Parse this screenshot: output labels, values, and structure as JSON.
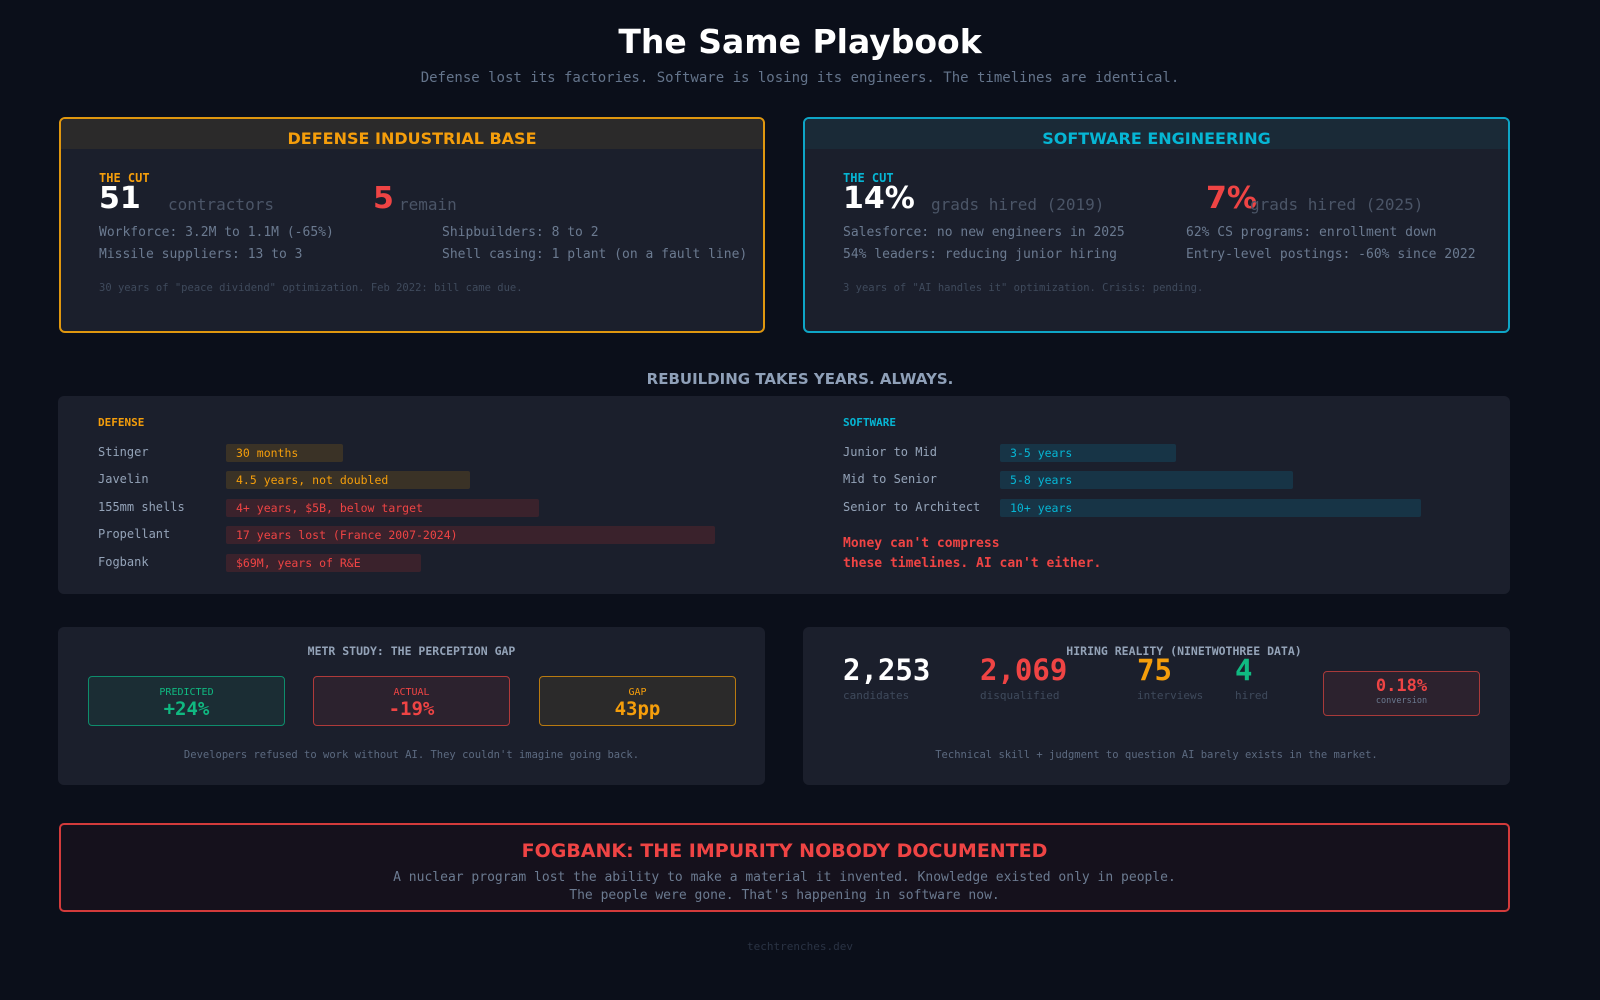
{
  "header": {
    "title": "The Same Playbook",
    "subtitle": "Defense lost its factories. Software is losing its engineers. The timelines are identical."
  },
  "defense": {
    "title": "DEFENSE INDUSTRIAL BASE",
    "cut_label": "THE CUT",
    "from_value": "51",
    "from_unit": "contractors",
    "to_value": "5",
    "to_unit": "remain",
    "facts": [
      "Workforce: 3.2M to 1.1M (-65%)",
      "Shipbuilders: 8 to 2",
      "Missile suppliers: 13 to 3",
      "Shell casing: 1 plant (on a fault line)"
    ],
    "note": "30 years of \"peace dividend\" optimization. Feb 2022: bill came due."
  },
  "software": {
    "title": "SOFTWARE ENGINEERING",
    "cut_label": "THE CUT",
    "from_value": "14%",
    "from_unit": "grads hired (2019)",
    "to_value": "7%",
    "to_unit": "grads hired (2025)",
    "facts": [
      "Salesforce: no new engineers in 2025",
      "62% CS programs: enrollment down",
      "54% leaders: reducing junior hiring",
      "Entry-level postings: -60% since 2022"
    ],
    "note": "3 years of \"AI handles it\" optimization. Crisis: pending."
  },
  "rebuild": {
    "title": "REBUILDING TAKES YEARS. ALWAYS.",
    "defense_label": "DEFENSE",
    "defense_items": [
      {
        "name": "Stinger",
        "value": "30 months"
      },
      {
        "name": "Javelin",
        "value": "4.5 years, not doubled"
      },
      {
        "name": "155mm shells",
        "value": "4+ years, $5B, below target"
      },
      {
        "name": "Propellant",
        "value": "17 years lost (France 2007-2024)"
      },
      {
        "name": "Fogbank",
        "value": "$69M, years of R&E"
      }
    ],
    "software_label": "SOFTWARE",
    "software_items": [
      {
        "name": "Junior to Mid",
        "value": "3-5 years"
      },
      {
        "name": "Mid to Senior",
        "value": "5-8 years"
      },
      {
        "name": "Senior to Architect",
        "value": "10+ years"
      }
    ],
    "callout_line1": "Money can't compress",
    "callout_line2": "these timelines. AI can't either."
  },
  "metr": {
    "title": "METR STUDY: THE PERCEPTION GAP",
    "predicted_label": "PREDICTED",
    "predicted_value": "+24%",
    "actual_label": "ACTUAL",
    "actual_value": "-19%",
    "gap_label": "GAP",
    "gap_value": "43pp",
    "note": "Developers refused to work without AI. They couldn't imagine going back."
  },
  "hiring": {
    "title": "HIRING REALITY (NINETWOTHREE DATA)",
    "stats": [
      {
        "value": "2,253",
        "label": "candidates"
      },
      {
        "value": "2,069",
        "label": "disqualified"
      },
      {
        "value": "75",
        "label": "interviews"
      },
      {
        "value": "4",
        "label": "hired"
      }
    ],
    "conversion_value": "0.18%",
    "conversion_label": "conversion",
    "note": "Technical skill + judgment to question AI barely exists in the market."
  },
  "fogbank": {
    "title": "FOGBANK: THE IMPURITY NOBODY DOCUMENTED",
    "line1": "A nuclear program lost the ability to make a material it invented. Knowledge existed only in people.",
    "line2": "The people were gone. That's happening in software now."
  },
  "footer": "techtrenches.dev",
  "colors": {
    "defense": "#f59e0b",
    "software": "#06b6d4",
    "red": "#ef4444",
    "green": "#10b981"
  }
}
